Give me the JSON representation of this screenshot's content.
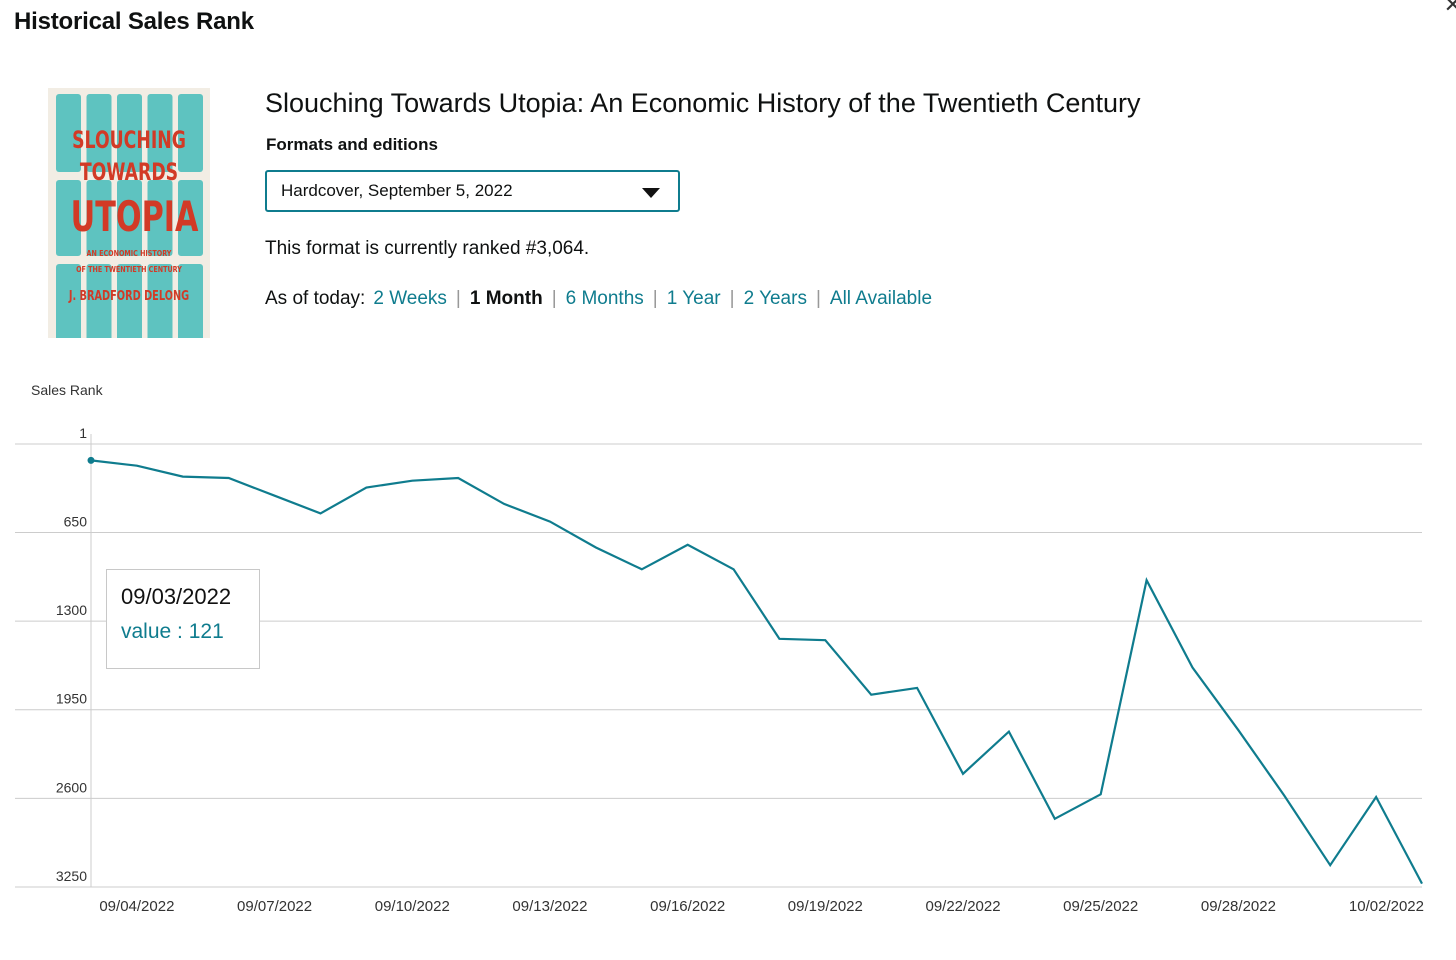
{
  "header": {
    "title": "Historical Sales Rank"
  },
  "book": {
    "title": "Slouching Towards Utopia: An Economic History of the Twentieth Century",
    "cover": {
      "line1": "SLOUCHING",
      "line2": "TOWARDS",
      "line3": "UTOPIA",
      "line4": "AN ECONOMIC HISTORY",
      "line5": "OF THE TWENTIETH CENTURY",
      "line6": "J. BRADFORD DELONG",
      "bg_color": "#f2ede4",
      "fridge_color": "#5ec3c0",
      "text_color": "#d23a26"
    }
  },
  "formats": {
    "label": "Formats and editions",
    "selected": "Hardcover, September 5, 2022"
  },
  "rank_text": "This format is currently ranked #3,064.",
  "range": {
    "prefix": "As of today:",
    "options": [
      "2 Weeks",
      "1 Month",
      "6 Months",
      "1 Year",
      "2 Years",
      "All Available"
    ],
    "active": "1 Month"
  },
  "tooltip": {
    "date": "09/03/2022",
    "value": "value : 121"
  },
  "colors": {
    "accent": "#0f7c8e",
    "grid": "#cccccc"
  },
  "chart_data": {
    "type": "line",
    "ylabel": "Sales Rank",
    "yticks": [
      "1",
      "650",
      "1300",
      "1950",
      "2600",
      "3250"
    ],
    "ylim": [
      1,
      3250
    ],
    "y_reversed": true,
    "xticks": [
      "09/04/2022",
      "09/07/2022",
      "09/10/2022",
      "09/13/2022",
      "09/16/2022",
      "09/19/2022",
      "09/22/2022",
      "09/25/2022",
      "09/28/2022",
      "10/02/2022"
    ],
    "x": [
      "09/03/2022",
      "09/04/2022",
      "09/05/2022",
      "09/06/2022",
      "09/07/2022",
      "09/08/2022",
      "09/09/2022",
      "09/10/2022",
      "09/11/2022",
      "09/12/2022",
      "09/13/2022",
      "09/14/2022",
      "09/15/2022",
      "09/16/2022",
      "09/17/2022",
      "09/18/2022",
      "09/19/2022",
      "09/20/2022",
      "09/21/2022",
      "09/22/2022",
      "09/23/2022",
      "09/24/2022",
      "09/25/2022",
      "09/26/2022",
      "09/27/2022",
      "09/28/2022",
      "09/29/2022",
      "09/30/2022",
      "10/01/2022",
      "10/02/2022"
    ],
    "series": [
      {
        "values": [
          121,
          160,
          240,
          250,
          380,
          510,
          320,
          270,
          250,
          440,
          570,
          760,
          920,
          740,
          920,
          1430,
          1440,
          1840,
          1790,
          2420,
          2110,
          2750,
          2570,
          1000,
          1640,
          2100,
          2580,
          3090,
          2590,
          3225
        ]
      }
    ],
    "grid": true,
    "legend": "none"
  }
}
